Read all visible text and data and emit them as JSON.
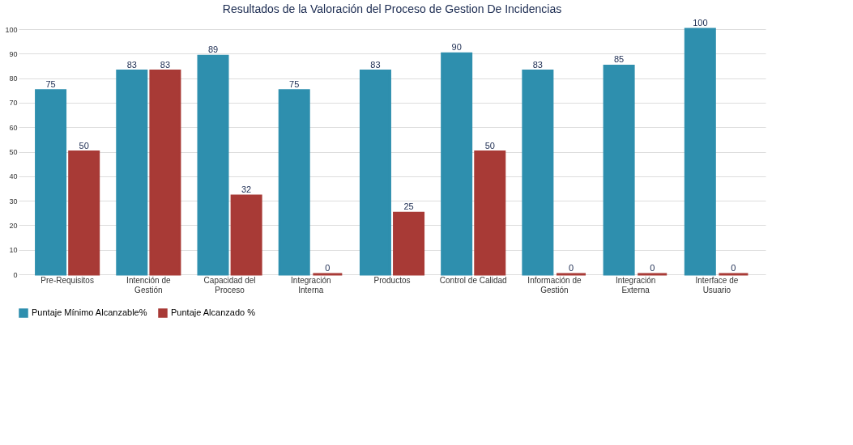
{
  "chart_data": {
    "type": "bar",
    "title": "Resultados de la Valoración del Proceso de Gestion De Incidencias",
    "categories": [
      "Pre-Requisitos",
      "Intención de Gestión",
      "Capacidad del Proceso",
      "Integración Interna",
      "Productos",
      "Control de Calidad",
      "Información de Gestión",
      "Integración Externa",
      "Interface de Usuario"
    ],
    "series": [
      {
        "name": "Puntaje Mínimo Alcanzable%",
        "color": "#2e8fae",
        "values": [
          75,
          83,
          89,
          75,
          83,
          90,
          83,
          85,
          100
        ]
      },
      {
        "name": "Puntaje Alcanzado %",
        "color": "#a83a36",
        "values": [
          50,
          83,
          32,
          0,
          25,
          50,
          0,
          0,
          0
        ]
      }
    ],
    "ylim": [
      0,
      100
    ],
    "yticks": [
      0,
      10,
      20,
      30,
      40,
      50,
      60,
      70,
      80,
      90,
      100
    ],
    "grid": "y",
    "legend": "bottom",
    "data_labels": true
  }
}
